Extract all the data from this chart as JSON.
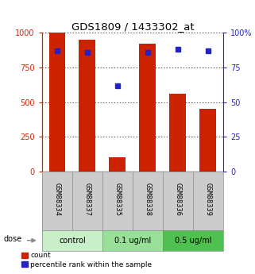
{
  "title": "GDS1809 / 1433302_at",
  "samples": [
    "GSM88334",
    "GSM88337",
    "GSM88335",
    "GSM88338",
    "GSM88336",
    "GSM88339"
  ],
  "bar_heights": [
    1000,
    950,
    100,
    920,
    560,
    450
  ],
  "blue_y": [
    87,
    86,
    62,
    86,
    88,
    87
  ],
  "groups": [
    {
      "label": "control",
      "span": [
        0,
        2
      ],
      "color": "#c8efc8"
    },
    {
      "label": "0.1 ug/ml",
      "span": [
        2,
        4
      ],
      "color": "#98e098"
    },
    {
      "label": "0.5 ug/ml",
      "span": [
        4,
        6
      ],
      "color": "#50c050"
    }
  ],
  "bar_color": "#cc2200",
  "blue_color": "#2222cc",
  "left_axis_color": "#cc2200",
  "right_axis_color": "#2222cc",
  "ylim_left": [
    0,
    1000
  ],
  "ylim_right": [
    0,
    100
  ],
  "yticks_left": [
    0,
    250,
    500,
    750,
    1000
  ],
  "ytick_labels_left": [
    "0",
    "250",
    "500",
    "750",
    "1000"
  ],
  "yticks_right": [
    0,
    25,
    50,
    75,
    100
  ],
  "ytick_labels_right": [
    "0",
    "25",
    "50",
    "75",
    "100%"
  ],
  "bar_width": 0.55,
  "dose_label": "dose",
  "legend_count_label": "count",
  "legend_pct_label": "percentile rank within the sample",
  "sample_box_color": "#cccccc",
  "title_fontsize": 9.5
}
